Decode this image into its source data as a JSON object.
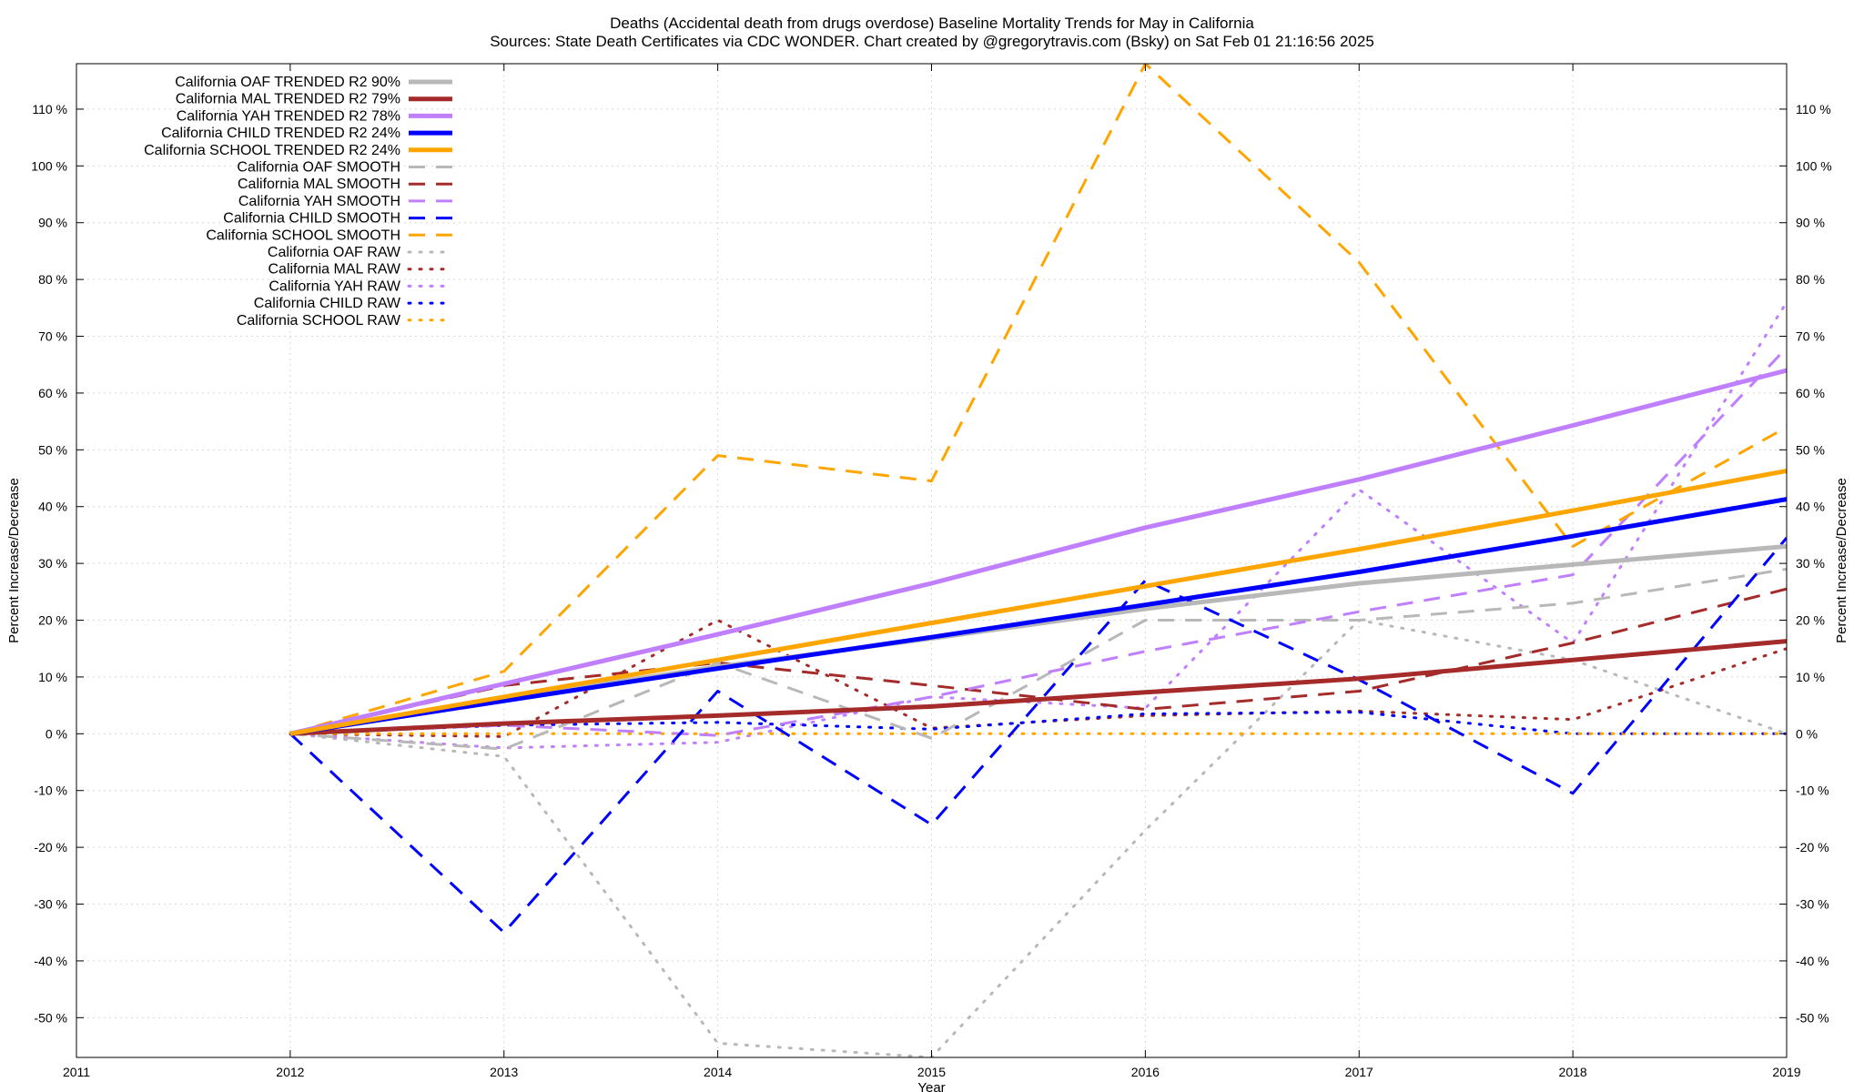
{
  "chart_data": {
    "type": "line",
    "title_line1": "Deaths (Accidental death from drugs overdose)  Baseline Mortality Trends for May in California",
    "title_line2": "Sources: State Death Certificates via CDC WONDER.              Chart created by @gregorytravis.com (Bsky) on Sat Feb 01 21:16:56 2025",
    "xlabel": "Year",
    "ylabel": "Percent Increase/Decrease",
    "xlim": [
      2011,
      2019
    ],
    "ylim": [
      -57,
      118
    ],
    "x_ticks": [
      2011,
      2012,
      2013,
      2014,
      2015,
      2016,
      2017,
      2018,
      2019
    ],
    "x_tick_labels": [
      "2011",
      "2012",
      "2013",
      "2014",
      "2015",
      "2016",
      "2017",
      "2018",
      "2019"
    ],
    "y_ticks": [
      -50,
      -40,
      -30,
      -20,
      -10,
      0,
      10,
      20,
      30,
      40,
      50,
      60,
      70,
      80,
      90,
      100,
      110
    ],
    "y_tick_labels": [
      "-50 %",
      "-40 %",
      "-30 %",
      "-20 %",
      "-10 %",
      "0 %",
      "10 %",
      "20 %",
      "30 %",
      "40 %",
      "50 %",
      "60 %",
      "70 %",
      "80 %",
      "90 %",
      "100 %",
      "110 %"
    ],
    "grid": true,
    "legend_position": "top-left",
    "series": [
      {
        "name": "California OAF TRENDED R2  90%",
        "style": "trend",
        "color": "#b8b8b8",
        "x": [
          2012,
          2013,
          2014,
          2015,
          2016,
          2017,
          2018,
          2019
        ],
        "y": [
          0,
          6.2,
          11.8,
          16.8,
          22.0,
          26.5,
          29.8,
          33.0
        ]
      },
      {
        "name": "California MAL TRENDED R2  79%",
        "style": "trend",
        "color": "#a52a2a",
        "x": [
          2012,
          2013,
          2014,
          2015,
          2016,
          2017,
          2018,
          2019
        ],
        "y": [
          0,
          1.8,
          3.2,
          4.8,
          7.3,
          9.7,
          13.0,
          16.3
        ]
      },
      {
        "name": "California YAH TRENDED R2  78%",
        "style": "trend",
        "color": "#bf7fff",
        "x": [
          2012,
          2013,
          2014,
          2015,
          2016,
          2017,
          2018,
          2019
        ],
        "y": [
          0,
          8.8,
          17.5,
          26.5,
          36.3,
          44.8,
          54.3,
          64.0
        ]
      },
      {
        "name": "California CHILD TRENDED R2  24%",
        "style": "trend",
        "color": "#0000ff",
        "x": [
          2012,
          2013,
          2014,
          2015,
          2016,
          2017,
          2018,
          2019
        ],
        "y": [
          0,
          5.8,
          11.5,
          17.0,
          22.7,
          28.5,
          34.8,
          41.3
        ]
      },
      {
        "name": "California SCHOOL TRENDED R2  24%",
        "style": "trend",
        "color": "#ffa500",
        "x": [
          2012,
          2013,
          2014,
          2015,
          2016,
          2017,
          2018,
          2019
        ],
        "y": [
          0,
          6.5,
          13.0,
          19.5,
          26.0,
          32.5,
          39.3,
          46.3
        ]
      },
      {
        "name": "California OAF SMOOTH",
        "style": "smooth",
        "color": "#b8b8b8",
        "x": [
          2012,
          2013,
          2014,
          2015,
          2016,
          2017,
          2018,
          2019
        ],
        "y": [
          0,
          -2.7,
          12.5,
          -0.8,
          20.0,
          20.0,
          23.0,
          29.0
        ]
      },
      {
        "name": "California MAL SMOOTH",
        "style": "smooth",
        "color": "#a52a2a",
        "x": [
          2012,
          2013,
          2014,
          2015,
          2016,
          2017,
          2018,
          2019
        ],
        "y": [
          0,
          8.5,
          12.5,
          8.5,
          4.3,
          7.5,
          16.0,
          25.5
        ]
      },
      {
        "name": "California YAH SMOOTH",
        "style": "smooth",
        "color": "#bf7fff",
        "x": [
          2012,
          2013,
          2014,
          2015,
          2016,
          2017,
          2018,
          2019
        ],
        "y": [
          0,
          1.5,
          -0.3,
          6.5,
          14.5,
          21.5,
          28.0,
          68.0
        ]
      },
      {
        "name": "California CHILD SMOOTH",
        "style": "smooth",
        "color": "#0000ff",
        "x": [
          2012,
          2013,
          2014,
          2015,
          2016,
          2017,
          2018,
          2019
        ],
        "y": [
          0,
          -35.0,
          7.5,
          -16.0,
          27.0,
          9.5,
          -10.5,
          34.5
        ]
      },
      {
        "name": "California SCHOOL SMOOTH",
        "style": "smooth",
        "color": "#ffa500",
        "x": [
          2012,
          2013,
          2014,
          2015,
          2016,
          2017,
          2018,
          2019
        ],
        "y": [
          0,
          11.0,
          49.0,
          44.5,
          118.0,
          83.0,
          33.0,
          54.0
        ]
      },
      {
        "name": "California OAF RAW",
        "style": "raw",
        "color": "#b8b8b8",
        "x": [
          2012,
          2013,
          2014,
          2015,
          2016,
          2017,
          2018,
          2019
        ],
        "y": [
          0,
          -4.0,
          -54.5,
          -57.0,
          -17.0,
          20.0,
          13.0,
          0
        ]
      },
      {
        "name": "California MAL RAW",
        "style": "raw",
        "color": "#a52a2a",
        "x": [
          2012,
          2013,
          2014,
          2015,
          2016,
          2017,
          2018,
          2019
        ],
        "y": [
          0,
          -0.5,
          20.0,
          1.0,
          3.2,
          4.0,
          2.5,
          15.0
        ]
      },
      {
        "name": "California YAH RAW",
        "style": "raw",
        "color": "#bf7fff",
        "x": [
          2012,
          2013,
          2014,
          2015,
          2016,
          2017,
          2018,
          2019
        ],
        "y": [
          0,
          -2.5,
          -1.5,
          6.5,
          4.5,
          43.0,
          16.0,
          76.0
        ]
      },
      {
        "name": "California CHILD RAW",
        "style": "raw",
        "color": "#0000ff",
        "x": [
          2012,
          2013,
          2014,
          2015,
          2016,
          2017,
          2018,
          2019
        ],
        "y": [
          0,
          1.5,
          2.0,
          0.8,
          3.5,
          3.8,
          0,
          0
        ]
      },
      {
        "name": "California SCHOOL RAW",
        "style": "raw",
        "color": "#ffa500",
        "x": [
          2012,
          2013,
          2014,
          2015,
          2016,
          2017,
          2018,
          2019
        ],
        "y": [
          0,
          0,
          0,
          0,
          0,
          0,
          0,
          0
        ]
      }
    ]
  }
}
